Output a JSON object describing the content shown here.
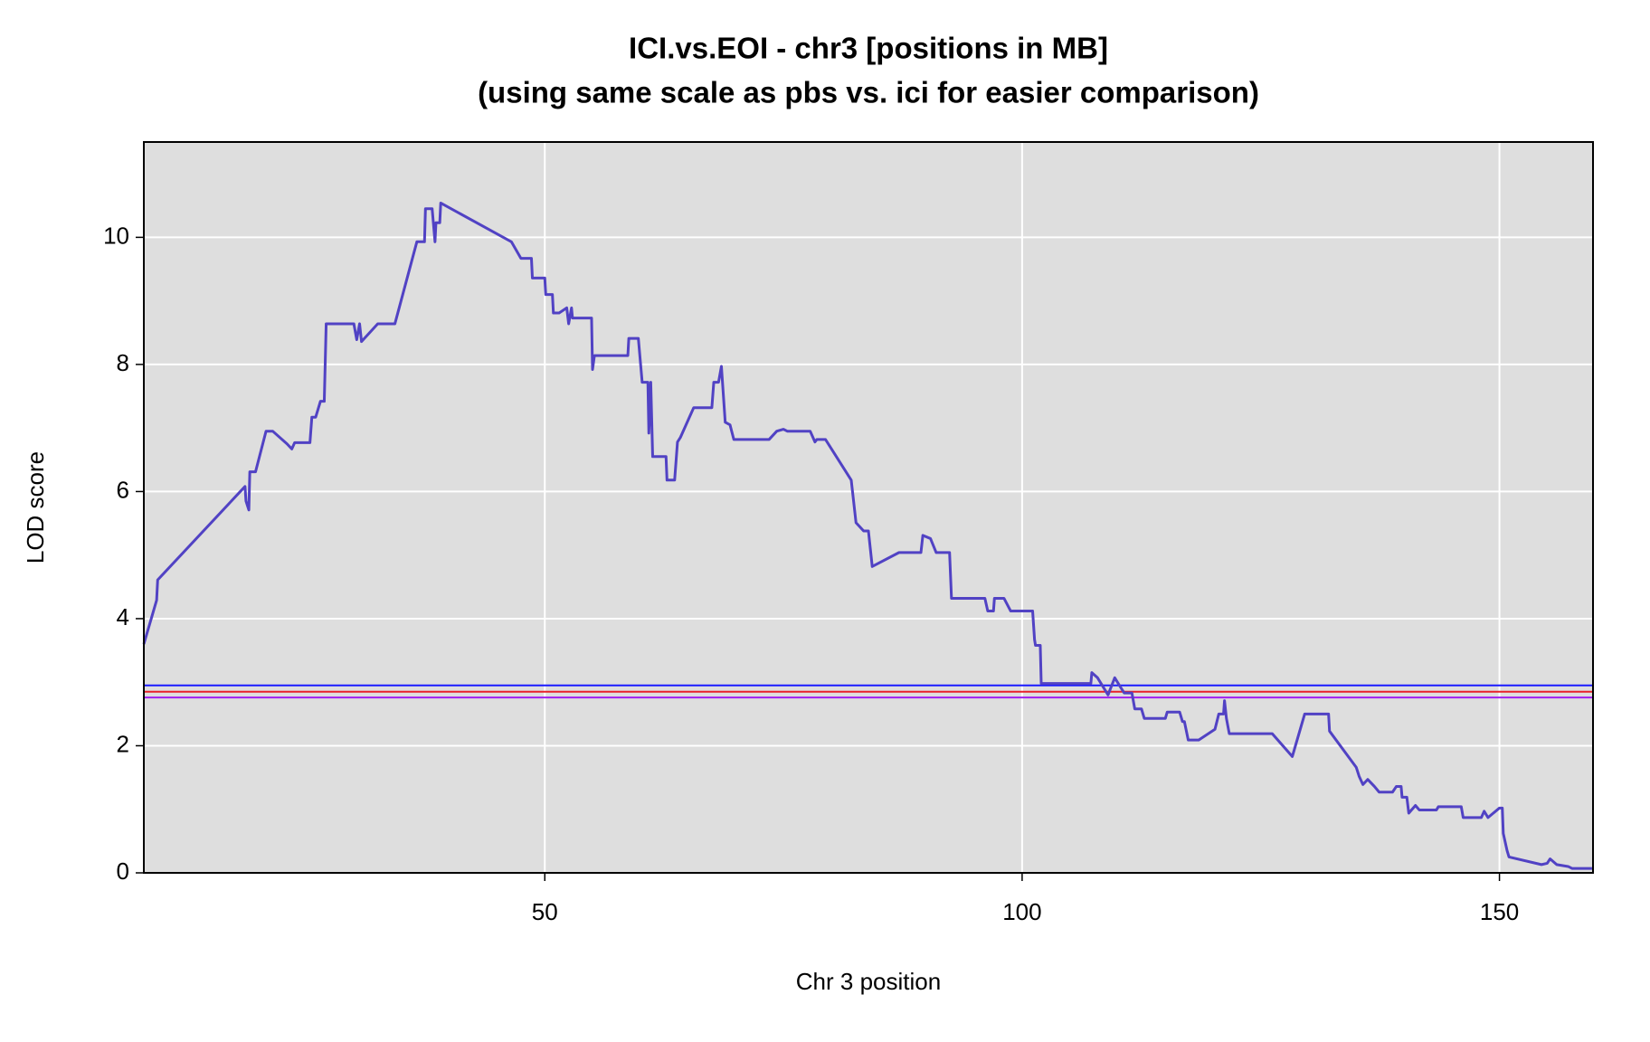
{
  "chart_data": {
    "type": "line",
    "title": "ICI.vs.EOI - chr3 [positions in MB]",
    "subtitle": "(using same scale as pbs vs. ici for easier comparison)",
    "x_label": "Chr 3 position",
    "y_label": "LOD score",
    "xlim": [
      8,
      159.8
    ],
    "ylim": [
      0,
      11.5
    ],
    "xticks": [
      50,
      100,
      150
    ],
    "yticks": [
      0,
      2,
      4,
      6,
      8,
      10
    ],
    "grid": true,
    "background": "#dedede",
    "hlines": [
      {
        "value": 2.95,
        "color": "#1a1aff"
      },
      {
        "value": 2.85,
        "color": "#e8202a"
      },
      {
        "value": 2.76,
        "color": "#a020f0"
      }
    ],
    "x": [
      8.0,
      9.34,
      9.45,
      18.6,
      18.7,
      19.0,
      19.1,
      19.7,
      20.8,
      21.5,
      23.0,
      23.5,
      23.8,
      25.4,
      25.6,
      26.0,
      26.5,
      26.9,
      27.1,
      30.0,
      30.3,
      30.6,
      30.8,
      32.5,
      34.3,
      36.6,
      37.4,
      37.5,
      38.2,
      38.5,
      38.6,
      39.0,
      39.1,
      46.5,
      47.5,
      48.6,
      48.7,
      50.0,
      50.1,
      50.8,
      50.9,
      51.5,
      52.3,
      52.5,
      52.8,
      52.9,
      54.9,
      55.0,
      55.2,
      58.7,
      58.8,
      59.8,
      60.2,
      60.8,
      60.9,
      61.1,
      61.3,
      62.7,
      62.8,
      63.6,
      63.9,
      64.2,
      65.6,
      67.5,
      67.7,
      68.2,
      68.5,
      68.9,
      69.4,
      69.8,
      73.5,
      74.3,
      75.0,
      75.4,
      77.8,
      78.3,
      78.5,
      79.4,
      82.1,
      82.6,
      83.4,
      83.9,
      84.3,
      87.1,
      89.4,
      89.6,
      90.4,
      91.0,
      92.4,
      92.6,
      96.1,
      96.4,
      97.0,
      97.1,
      98.1,
      98.8,
      101.1,
      101.3,
      101.4,
      101.9,
      102.0,
      107.2,
      107.3,
      107.9,
      109.0,
      109.7,
      110.4,
      110.7,
      111.5,
      111.8,
      112.5,
      112.8,
      115.0,
      115.2,
      116.5,
      116.8,
      117.0,
      117.4,
      118.5,
      120.2,
      120.6,
      121.1,
      121.2,
      121.4,
      121.7,
      126.2,
      128.3,
      129.6,
      132.1,
      132.2,
      135.0,
      135.3,
      135.7,
      136.2,
      136.9,
      137.4,
      138.8,
      139.2,
      139.7,
      139.8,
      140.3,
      140.5,
      141.2,
      141.6,
      143.4,
      143.6,
      146.0,
      146.2,
      148.1,
      148.4,
      148.8,
      150.0,
      150.3,
      150.4,
      150.8,
      151.0,
      154.4,
      155.0,
      155.3,
      156.0,
      157.2,
      157.6,
      159.7
    ],
    "series": [
      {
        "name": "ICI.vs.EOI",
        "color": "#5142c4",
        "values": [
          3.6,
          4.29,
          4.61,
          6.08,
          5.85,
          5.71,
          6.31,
          6.31,
          6.95,
          6.95,
          6.75,
          6.67,
          6.77,
          6.77,
          7.17,
          7.17,
          7.42,
          7.42,
          8.64,
          8.64,
          8.39,
          8.64,
          8.36,
          8.64,
          8.64,
          9.93,
          9.93,
          10.45,
          10.45,
          9.93,
          10.23,
          10.23,
          10.54,
          9.93,
          9.67,
          9.67,
          9.36,
          9.36,
          9.1,
          9.1,
          8.81,
          8.81,
          8.89,
          8.64,
          8.89,
          8.73,
          8.73,
          7.92,
          8.14,
          8.14,
          8.41,
          8.41,
          7.72,
          7.72,
          6.92,
          7.72,
          6.55,
          6.55,
          6.18,
          6.18,
          6.78,
          6.85,
          7.32,
          7.32,
          7.72,
          7.72,
          7.97,
          7.09,
          7.05,
          6.82,
          6.82,
          6.95,
          6.98,
          6.95,
          6.95,
          6.78,
          6.82,
          6.82,
          6.18,
          5.51,
          5.38,
          5.38,
          4.82,
          5.04,
          5.04,
          5.31,
          5.26,
          5.04,
          5.04,
          4.32,
          4.32,
          4.12,
          4.12,
          4.32,
          4.32,
          4.12,
          4.12,
          3.67,
          3.58,
          3.58,
          2.98,
          2.98,
          3.15,
          3.07,
          2.8,
          3.07,
          2.9,
          2.83,
          2.83,
          2.58,
          2.58,
          2.43,
          2.43,
          2.53,
          2.53,
          2.38,
          2.38,
          2.09,
          2.09,
          2.26,
          2.5,
          2.5,
          2.71,
          2.43,
          2.19,
          2.19,
          1.83,
          2.5,
          2.5,
          2.23,
          1.66,
          1.52,
          1.39,
          1.47,
          1.36,
          1.27,
          1.27,
          1.36,
          1.36,
          1.19,
          1.19,
          0.94,
          1.06,
          0.99,
          0.99,
          1.04,
          1.04,
          0.87,
          0.87,
          0.97,
          0.87,
          1.02,
          1.02,
          0.62,
          0.35,
          0.25,
          0.13,
          0.15,
          0.22,
          0.13,
          0.1,
          0.07,
          0.07
        ]
      }
    ]
  }
}
